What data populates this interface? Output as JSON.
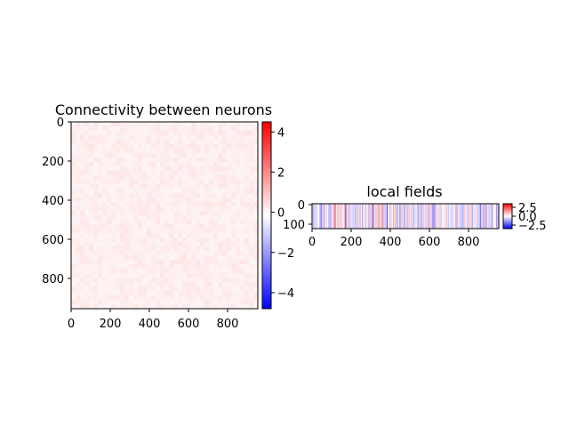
{
  "chart_data": [
    {
      "type": "heatmap",
      "title": "Connectivity between neurons",
      "xlabel": "",
      "ylabel": "",
      "x_ticks": [
        "0",
        "200",
        "400",
        "600",
        "800"
      ],
      "y_ticks": [
        "0",
        "200",
        "400",
        "600",
        "800"
      ],
      "xlim": [
        0,
        960
      ],
      "ylim": [
        960,
        0
      ],
      "colormap": "bwr",
      "colorbar": {
        "vmin": -4.8,
        "vmax": 4.5,
        "ticks": [
          "−4",
          "−2",
          "0",
          "2",
          "4"
        ],
        "tick_values": [
          -4,
          -2,
          0,
          2,
          4
        ]
      },
      "background_tint": "#fdeeee",
      "noise_seed": 7
    },
    {
      "type": "heatmap",
      "title": "local fields",
      "xlabel": "",
      "ylabel": "",
      "x_ticks": [
        "0",
        "200",
        "400",
        "600",
        "800"
      ],
      "y_ticks": [
        "0",
        "100"
      ],
      "xlim": [
        0,
        960
      ],
      "ylim": [
        130,
        0
      ],
      "colormap": "bwr",
      "colorbar": {
        "vmin": -3.5,
        "vmax": 3.5,
        "ticks": [
          "2.5",
          "0.0",
          "−2.5"
        ],
        "tick_values": [
          2.5,
          0.0,
          -2.5
        ]
      },
      "stripe_count": 240,
      "noise_seed": 13
    }
  ]
}
